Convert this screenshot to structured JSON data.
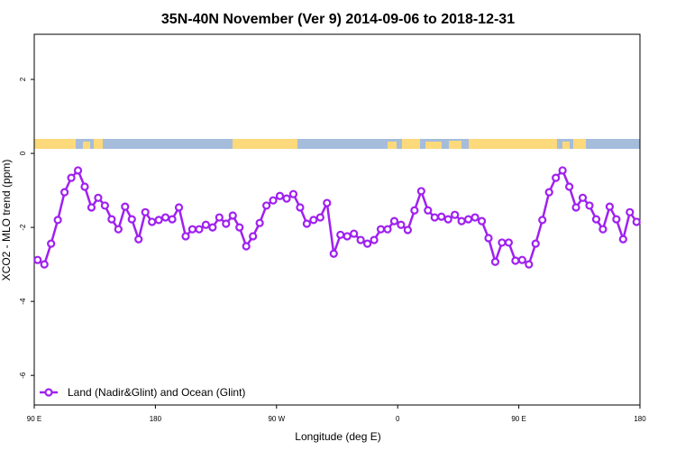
{
  "chart_data": {
    "type": "line",
    "title": "35N-40N November (Ver 9)   2014-09-06 to 2018-12-31",
    "x_label": "Longitude (deg E)",
    "y_label": "XCO2 - MLO trend (ppm)",
    "xlim": [
      90,
      540
    ],
    "xticks": [
      {
        "value": 90,
        "label": "90 E"
      },
      180,
      {
        "value": 270,
        "label": "90 W"
      },
      {
        "value": 360,
        "label": "0"
      },
      {
        "value": 450,
        "label": "90 E"
      },
      {
        "value": 540,
        "label": "180"
      }
    ],
    "ylim": [
      -6.8,
      3.22
    ],
    "yticks": [
      -6,
      -4,
      -2,
      0,
      2
    ],
    "legend": "bottom-left",
    "x": [
      92.5,
      97.5,
      102.5,
      107.5,
      112.5,
      117.5,
      122.5,
      127.5,
      132.5,
      137.5,
      142.5,
      147.5,
      152.5,
      157.5,
      162.5,
      167.5,
      172.5,
      177.5,
      182.5,
      187.5,
      192.5,
      197.5,
      202.5,
      207.5,
      212.5,
      217.5,
      222.5,
      227.5,
      232.5,
      237.5,
      242.5,
      247.5,
      252.5,
      257.5,
      262.5,
      267.5,
      272.5,
      277.5,
      282.5,
      287.5,
      292.5,
      297.5,
      302.5,
      307.5,
      312.5,
      317.5,
      322.5,
      327.5,
      332.5,
      337.5,
      342.5,
      347.5,
      352.5,
      357.5,
      362.5,
      367.5,
      372.5,
      377.5,
      382.5,
      387.5,
      392.5,
      397.5,
      402.5,
      407.5,
      412.5,
      417.5,
      422.5,
      427.5,
      432.5,
      437.5,
      442.5,
      447.5,
      452.5,
      457.5,
      462.5,
      467.5,
      472.5,
      477.5,
      482.5,
      487.5,
      492.5,
      497.5,
      502.5,
      507.5,
      512.5,
      517.5,
      522.5,
      527.5,
      532.5,
      537.5
    ],
    "series": [
      {
        "name": "Land (Nadir&Glint) and Ocean (Glint)",
        "color": "#a020f0",
        "values": [
          -2.88,
          -3.0,
          -2.44,
          -1.8,
          -1.05,
          -0.66,
          -0.46,
          -0.9,
          -1.46,
          -1.2,
          -1.41,
          -1.78,
          -2.05,
          -1.44,
          -1.78,
          -2.32,
          -1.59,
          -1.85,
          -1.8,
          -1.73,
          -1.78,
          -1.46,
          -2.24,
          -2.05,
          -2.05,
          -1.93,
          -2.0,
          -1.73,
          -1.9,
          -1.68,
          -2.0,
          -2.51,
          -2.24,
          -1.88,
          -1.41,
          -1.27,
          -1.15,
          -1.22,
          -1.1,
          -1.46,
          -1.9,
          -1.8,
          -1.73,
          -1.34,
          -2.71,
          -2.2,
          -2.24,
          -2.17,
          -2.34,
          -2.44,
          -2.34,
          -2.05,
          -2.05,
          -1.83,
          -1.93,
          -2.07,
          -1.54,
          -1.02,
          -1.54,
          -1.73,
          -1.71,
          -1.78,
          -1.66,
          -1.83,
          -1.78,
          -1.73,
          -1.83,
          -2.29,
          -2.93,
          -2.41,
          -2.41,
          -2.9,
          -2.88,
          -3.0,
          -2.44,
          -1.8,
          -1.05,
          -0.66,
          -0.46,
          -0.9,
          -1.46,
          -1.2,
          -1.41,
          -1.78,
          -2.05,
          -1.44,
          -1.78,
          -2.32,
          -1.59,
          -1.85
        ]
      }
    ]
  }
}
